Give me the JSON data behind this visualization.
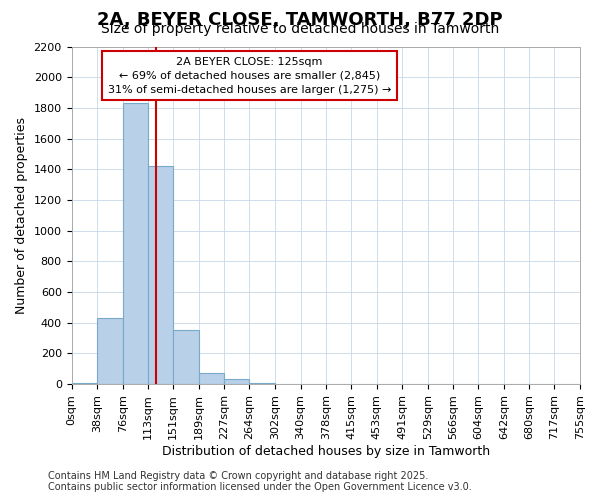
{
  "title": "2A, BEYER CLOSE, TAMWORTH, B77 2DP",
  "subtitle": "Size of property relative to detached houses in Tamworth",
  "xlabel": "Distribution of detached houses by size in Tamworth",
  "ylabel": "Number of detached properties",
  "footer_line1": "Contains HM Land Registry data © Crown copyright and database right 2025.",
  "footer_line2": "Contains public sector information licensed under the Open Government Licence v3.0.",
  "annotation_line1": "2A BEYER CLOSE: 125sqm",
  "annotation_line2": "← 69% of detached houses are smaller (2,845)",
  "annotation_line3": "31% of semi-detached houses are larger (1,275) →",
  "bar_color": "#b8d0e8",
  "bar_edge_color": "#7aaacb",
  "vline_color": "#cc0000",
  "vline_x": 125,
  "ylim": [
    0,
    2200
  ],
  "yticks": [
    0,
    200,
    400,
    600,
    800,
    1000,
    1200,
    1400,
    1600,
    1800,
    2000,
    2200
  ],
  "bins": [
    0,
    38,
    76,
    113,
    151,
    189,
    227,
    264,
    302,
    340,
    378,
    415,
    453,
    491,
    529,
    566,
    604,
    642,
    680,
    717,
    755
  ],
  "bin_labels": [
    "0sqm",
    "38sqm",
    "76sqm",
    "113sqm",
    "151sqm",
    "189sqm",
    "227sqm",
    "264sqm",
    "302sqm",
    "340sqm",
    "378sqm",
    "415sqm",
    "453sqm",
    "491sqm",
    "529sqm",
    "566sqm",
    "604sqm",
    "642sqm",
    "680sqm",
    "717sqm",
    "755sqm"
  ],
  "bar_heights": [
    10,
    430,
    1830,
    1420,
    355,
    75,
    30,
    10,
    0,
    0,
    0,
    0,
    0,
    0,
    0,
    0,
    0,
    0,
    0,
    0
  ],
  "background_color": "#ffffff",
  "plot_bg_color": "#ffffff",
  "grid_color": "#c8d8e8",
  "title_fontsize": 13,
  "subtitle_fontsize": 10,
  "axis_label_fontsize": 9,
  "tick_fontsize": 8,
  "annotation_fontsize": 8,
  "footer_fontsize": 7
}
